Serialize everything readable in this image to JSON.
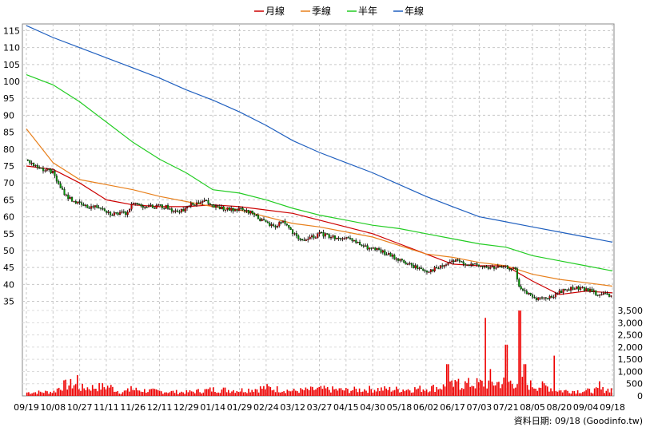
{
  "chart_data": {
    "type": "line",
    "legend_position": "top-center",
    "grid": true,
    "source_note": "資料日期: 09/18 (Goodinfo.tw)",
    "x_ticks": [
      "09/19",
      "10/08",
      "10/27",
      "11/11",
      "11/26",
      "12/11",
      "12/29",
      "01/14",
      "01/29",
      "02/24",
      "03/12",
      "03/27",
      "04/15",
      "04/30",
      "05/18",
      "06/02",
      "06/17",
      "07/03",
      "07/21",
      "08/05",
      "08/20",
      "09/04",
      "09/18"
    ],
    "price_axis": {
      "ylim": [
        33,
        117
      ],
      "ticks": [
        35,
        40,
        45,
        50,
        55,
        60,
        65,
        70,
        75,
        80,
        85,
        90,
        95,
        100,
        105,
        110,
        115
      ]
    },
    "volume_axis": {
      "ylim": [
        0,
        3600
      ],
      "ticks": [
        "0",
        "500",
        "1,000",
        "1,500",
        "2,000",
        "2,500",
        "3,000",
        "3,500"
      ]
    },
    "series": [
      {
        "name": "月線",
        "color": "#cc0000",
        "points": [
          [
            0,
            75
          ],
          [
            1,
            74
          ],
          [
            2,
            70
          ],
          [
            3,
            65
          ],
          [
            4,
            63.5
          ],
          [
            5,
            63
          ],
          [
            6,
            63
          ],
          [
            7,
            63.5
          ],
          [
            8,
            63
          ],
          [
            9,
            62
          ],
          [
            10,
            61
          ],
          [
            11,
            59
          ],
          [
            12,
            57
          ],
          [
            13,
            55
          ],
          [
            14,
            52
          ],
          [
            15,
            49
          ],
          [
            16,
            46
          ],
          [
            17,
            45.5
          ],
          [
            18,
            45.5
          ],
          [
            19,
            41
          ],
          [
            20,
            37
          ],
          [
            21,
            38
          ],
          [
            22,
            37.5
          ]
        ]
      },
      {
        "name": "季線",
        "color": "#e8801c",
        "points": [
          [
            0,
            86
          ],
          [
            1,
            76
          ],
          [
            2,
            71
          ],
          [
            3,
            69.5
          ],
          [
            4,
            68
          ],
          [
            5,
            66
          ],
          [
            6,
            64.5
          ],
          [
            7,
            63
          ],
          [
            8,
            62
          ],
          [
            9,
            60
          ],
          [
            10,
            58
          ],
          [
            11,
            57
          ],
          [
            12,
            55.5
          ],
          [
            13,
            54
          ],
          [
            14,
            51.5
          ],
          [
            15,
            49
          ],
          [
            16,
            48
          ],
          [
            17,
            46.5
          ],
          [
            18,
            45.5
          ],
          [
            19,
            43
          ],
          [
            20,
            41.5
          ],
          [
            21,
            40.5
          ],
          [
            22,
            39.5
          ]
        ]
      },
      {
        "name": "半年",
        "color": "#22cc22",
        "points": [
          [
            0,
            102
          ],
          [
            1,
            99
          ],
          [
            2,
            94
          ],
          [
            3,
            88
          ],
          [
            4,
            82
          ],
          [
            5,
            77
          ],
          [
            6,
            73
          ],
          [
            7,
            68
          ],
          [
            8,
            67
          ],
          [
            9,
            65
          ],
          [
            10,
            62.5
          ],
          [
            11,
            60.5
          ],
          [
            12,
            59
          ],
          [
            13,
            57.5
          ],
          [
            14,
            56.5
          ],
          [
            15,
            55
          ],
          [
            16,
            53.5
          ],
          [
            17,
            52
          ],
          [
            18,
            51
          ],
          [
            19,
            48.5
          ],
          [
            20,
            47
          ],
          [
            21,
            45.5
          ],
          [
            22,
            44
          ]
        ]
      },
      {
        "name": "年線",
        "color": "#1f5fbf",
        "points": [
          [
            0,
            116.5
          ],
          [
            1,
            113
          ],
          [
            2,
            110
          ],
          [
            3,
            107
          ],
          [
            4,
            104
          ],
          [
            5,
            101
          ],
          [
            6,
            97.5
          ],
          [
            7,
            94.5
          ],
          [
            8,
            91
          ],
          [
            9,
            87
          ],
          [
            10,
            82.5
          ],
          [
            11,
            79
          ],
          [
            12,
            76
          ],
          [
            13,
            73
          ],
          [
            14,
            69.5
          ],
          [
            15,
            66
          ],
          [
            16,
            63
          ],
          [
            17,
            60
          ],
          [
            18,
            58.5
          ],
          [
            19,
            57
          ],
          [
            20,
            55.5
          ],
          [
            21,
            54
          ],
          [
            22,
            52.5
          ]
        ]
      }
    ],
    "price": {
      "knots": [
        [
          0,
          77
        ],
        [
          0.3,
          75
        ],
        [
          1,
          73
        ],
        [
          1.2,
          69
        ],
        [
          1.5,
          66
        ],
        [
          1.9,
          64
        ],
        [
          2.2,
          63
        ],
        [
          2.8,
          63
        ],
        [
          3.1,
          61
        ],
        [
          3.7,
          61
        ],
        [
          4,
          64
        ],
        [
          4.5,
          63
        ],
        [
          5.2,
          63
        ],
        [
          5.7,
          61
        ],
        [
          6,
          63
        ],
        [
          6.6,
          65
        ],
        [
          7,
          63
        ],
        [
          7.6,
          62
        ],
        [
          8,
          62
        ],
        [
          8.5,
          61
        ],
        [
          8.8,
          59
        ],
        [
          9,
          58
        ],
        [
          9.3,
          57
        ],
        [
          9.6,
          59
        ],
        [
          9.9,
          56
        ],
        [
          10.2,
          53
        ],
        [
          10.6,
          53.5
        ],
        [
          11,
          55
        ],
        [
          11.5,
          54
        ],
        [
          12.2,
          53
        ],
        [
          12.7,
          51
        ],
        [
          13.2,
          50
        ],
        [
          13.8,
          48
        ],
        [
          14.3,
          46
        ],
        [
          15,
          44
        ],
        [
          15.5,
          45
        ],
        [
          16,
          47
        ],
        [
          16.6,
          46
        ],
        [
          17.3,
          45
        ],
        [
          18,
          45
        ],
        [
          18.3,
          45
        ],
        [
          18.5,
          39
        ],
        [
          19,
          36
        ],
        [
          19.6,
          36
        ],
        [
          20,
          38
        ],
        [
          20.5,
          39
        ],
        [
          21,
          38.5
        ],
        [
          21.5,
          37
        ],
        [
          22,
          36.5
        ],
        [
          22,
          39
        ]
      ],
      "gap_after": 18.3,
      "candles_per_segment": 8
    },
    "volume": {
      "base": [
        [
          0,
          140
        ],
        [
          1,
          170
        ],
        [
          1.3,
          420
        ],
        [
          1.8,
          480
        ],
        [
          2,
          320
        ],
        [
          3.1,
          380
        ],
        [
          3.5,
          150
        ],
        [
          4,
          250
        ],
        [
          5,
          180
        ],
        [
          6,
          150
        ],
        [
          7,
          260
        ],
        [
          8,
          230
        ],
        [
          9,
          330
        ],
        [
          10,
          200
        ],
        [
          11,
          280
        ],
        [
          12,
          230
        ],
        [
          13,
          280
        ],
        [
          14,
          260
        ],
        [
          15,
          300
        ],
        [
          15.5,
          360
        ],
        [
          16,
          430
        ],
        [
          16.4,
          480
        ],
        [
          17,
          500
        ],
        [
          17.5,
          520
        ],
        [
          18,
          560
        ],
        [
          18.5,
          560
        ],
        [
          19,
          420
        ],
        [
          19.5,
          380
        ],
        [
          20,
          210
        ],
        [
          21,
          200
        ],
        [
          22,
          280
        ]
      ],
      "spikes": [
        [
          15.8,
          1300
        ],
        [
          16.2,
          700
        ],
        [
          17.2,
          3200
        ],
        [
          17.4,
          1100
        ],
        [
          18,
          2100
        ],
        [
          18.5,
          3500
        ],
        [
          18.7,
          1300
        ],
        [
          19.8,
          1650
        ],
        [
          21.5,
          600
        ],
        [
          22,
          650
        ],
        [
          22.2,
          1400
        ],
        [
          3.9,
          400
        ],
        [
          1.9,
          850
        ]
      ]
    }
  }
}
